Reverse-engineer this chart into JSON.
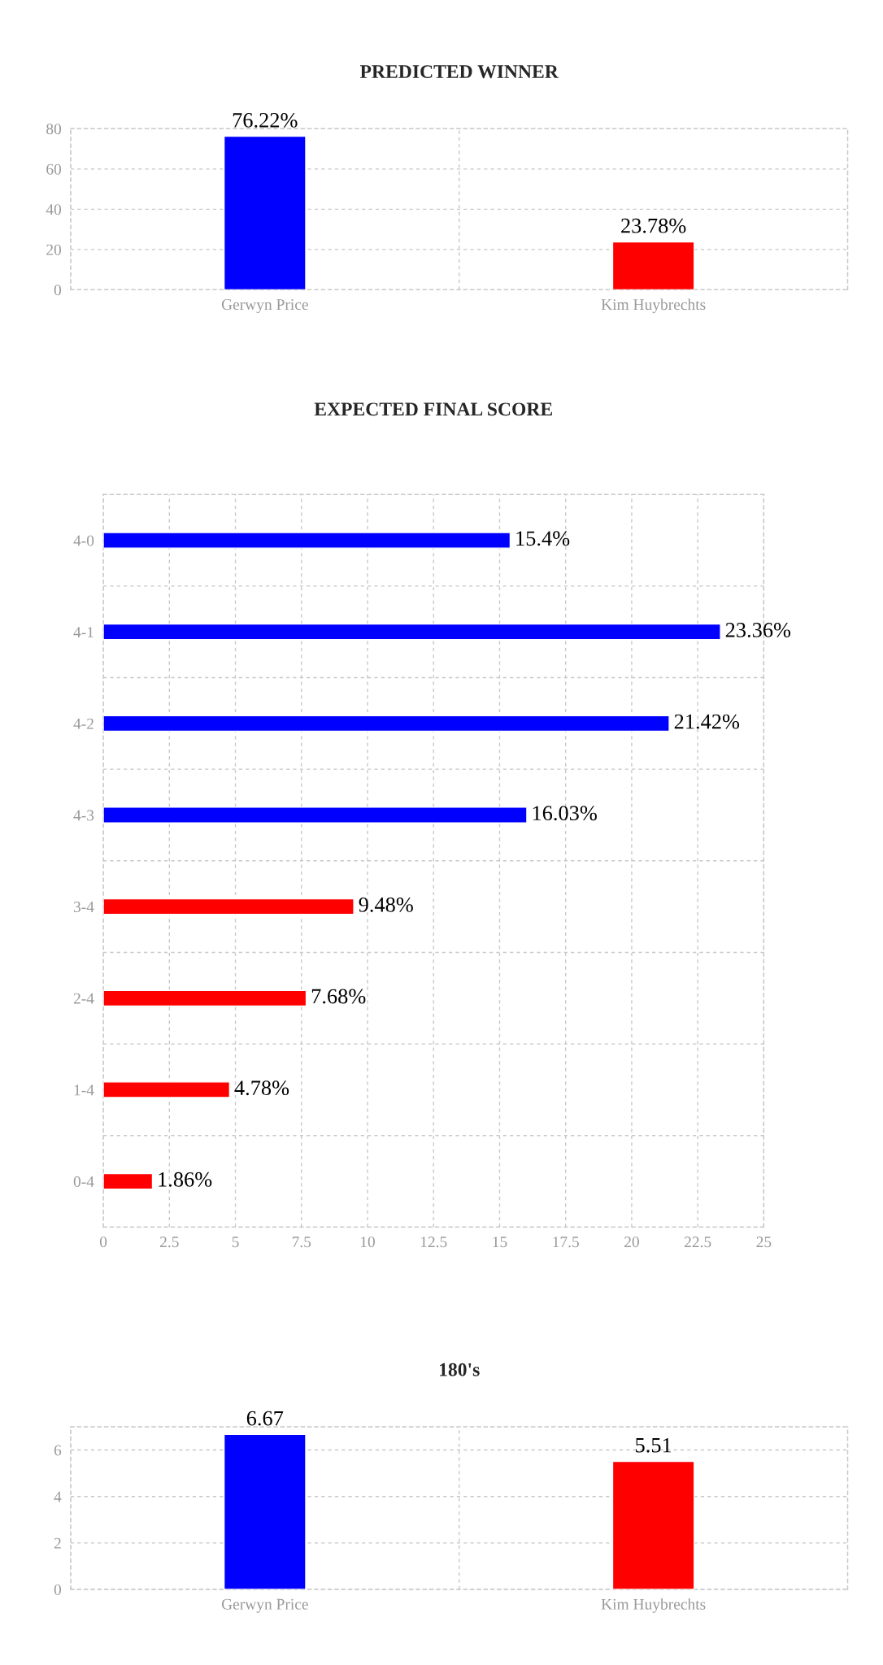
{
  "chart_data": [
    {
      "type": "bar",
      "title": "PREDICTED WINNER",
      "categories": [
        "Gerwyn Price",
        "Kim Huybrechts"
      ],
      "values": [
        76.22,
        23.78
      ],
      "colors": [
        "#0000ff",
        "#ff0000"
      ],
      "value_labels": [
        "76.22%",
        "23.78%"
      ],
      "ylim": [
        0,
        80
      ],
      "yticks": [
        0,
        20,
        40,
        60,
        80
      ],
      "grid": true,
      "legend": false
    },
    {
      "type": "bar",
      "orientation": "horizontal",
      "title": "EXPECTED FINAL SCORE",
      "categories": [
        "4-0",
        "4-1",
        "4-2",
        "4-3",
        "3-4",
        "2-4",
        "1-4",
        "0-4"
      ],
      "values": [
        15.4,
        23.36,
        21.42,
        16.03,
        9.48,
        7.68,
        4.78,
        1.86
      ],
      "colors": [
        "#0000ff",
        "#0000ff",
        "#0000ff",
        "#0000ff",
        "#ff0000",
        "#ff0000",
        "#ff0000",
        "#ff0000"
      ],
      "value_labels": [
        "15.4%",
        "23.36%",
        "21.42%",
        "16.03%",
        "9.48%",
        "7.68%",
        "4.78%",
        "1.86%"
      ],
      "xlim": [
        0,
        25
      ],
      "xticks": [
        0,
        2.5,
        5,
        7.5,
        10,
        12.5,
        15,
        17.5,
        20,
        22.5,
        25
      ],
      "grid": true,
      "legend": false
    },
    {
      "type": "bar",
      "title": "180's",
      "categories": [
        "Gerwyn Price",
        "Kim Huybrechts"
      ],
      "values": [
        6.67,
        5.51
      ],
      "colors": [
        "#0000ff",
        "#ff0000"
      ],
      "data_labels": true,
      "ylim": [
        0,
        7
      ],
      "yticks": [
        0,
        2,
        4,
        6
      ],
      "grid": true,
      "legend": false
    }
  ]
}
